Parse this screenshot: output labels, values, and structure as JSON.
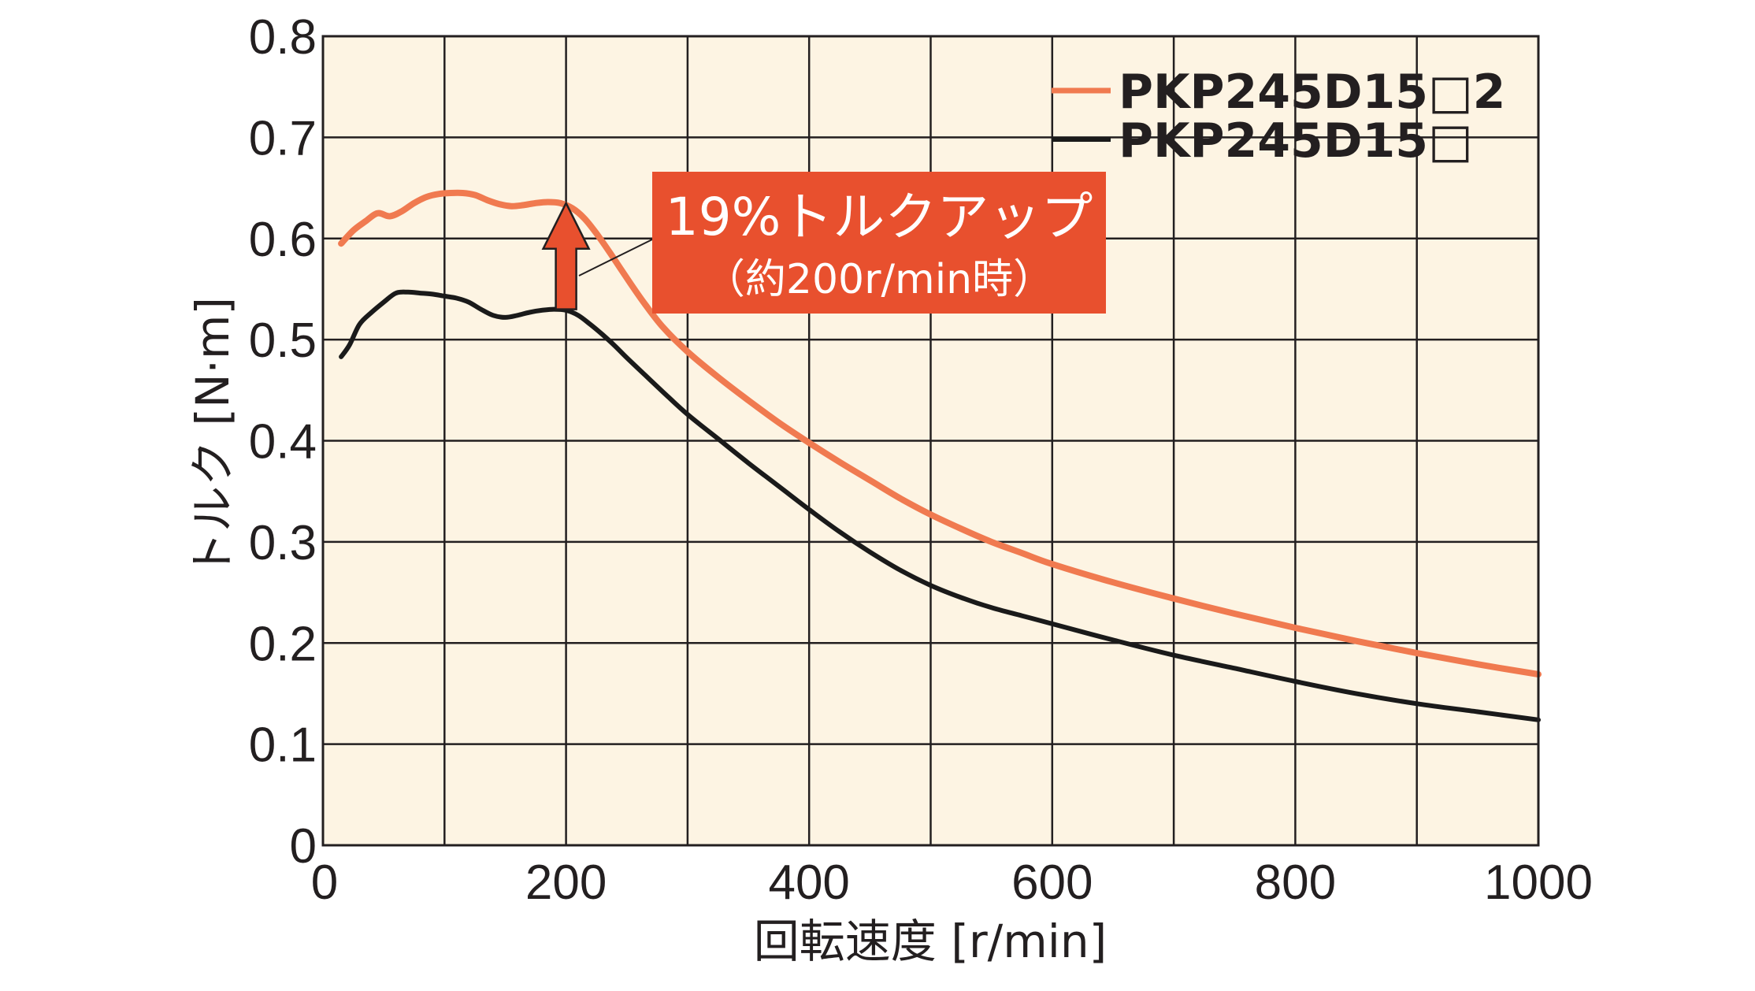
{
  "colors": {
    "plot_bg": "#fdf4e3",
    "grid": "#231f20",
    "series_orange": "#f07a50",
    "series_black": "#1a1a1a",
    "callout_bg": "#e8502e",
    "arrow": "#e8502e"
  },
  "annotation": {
    "main": "19%トルクアップ",
    "sub": "（約200r/min時）"
  },
  "chart_data": {
    "type": "line",
    "xlabel": "回転速度 [r/min]",
    "ylabel": "トルク [N·m]",
    "xlim": [
      0,
      1000
    ],
    "ylim": [
      0,
      0.8
    ],
    "x_ticks": [
      "0",
      "200",
      "400",
      "600",
      "800",
      "1000"
    ],
    "y_ticks": [
      "0",
      "0.1",
      "0.2",
      "0.3",
      "0.4",
      "0.5",
      "0.6",
      "0.7",
      "0.8"
    ],
    "grid": true,
    "grid_x_step": 100,
    "grid_y_step": 0.1,
    "legend_position": "top-right",
    "series": [
      {
        "name": "PKP245D15□2",
        "color": "#f07a50",
        "x": [
          15,
          25,
          35,
          45,
          55,
          65,
          75,
          85,
          95,
          105,
          115,
          125,
          135,
          145,
          155,
          165,
          175,
          185,
          195,
          205,
          215,
          225,
          235,
          245,
          255,
          265,
          280,
          300,
          325,
          350,
          375,
          400,
          425,
          450,
          475,
          500,
          525,
          550,
          575,
          600,
          650,
          700,
          750,
          800,
          850,
          900,
          950,
          1000
        ],
        "values": [
          0.595,
          0.608,
          0.617,
          0.625,
          0.622,
          0.627,
          0.635,
          0.641,
          0.644,
          0.645,
          0.645,
          0.643,
          0.638,
          0.634,
          0.632,
          0.633,
          0.635,
          0.636,
          0.635,
          0.63,
          0.62,
          0.605,
          0.588,
          0.57,
          0.552,
          0.535,
          0.512,
          0.488,
          0.463,
          0.44,
          0.418,
          0.398,
          0.379,
          0.361,
          0.343,
          0.327,
          0.313,
          0.3,
          0.289,
          0.278,
          0.26,
          0.244,
          0.229,
          0.215,
          0.202,
          0.19,
          0.179,
          0.169
        ]
      },
      {
        "name": "PKP245D15□",
        "color": "#1a1a1a",
        "x": [
          15,
          22,
          30,
          40,
          50,
          60,
          70,
          80,
          90,
          100,
          110,
          120,
          130,
          140,
          150,
          160,
          170,
          180,
          190,
          200,
          210,
          220,
          230,
          240,
          250,
          265,
          280,
          300,
          325,
          350,
          375,
          400,
          425,
          450,
          475,
          500,
          525,
          550,
          575,
          600,
          650,
          700,
          750,
          800,
          850,
          900,
          950,
          1000
        ],
        "values": [
          0.483,
          0.495,
          0.515,
          0.527,
          0.537,
          0.546,
          0.547,
          0.546,
          0.545,
          0.543,
          0.541,
          0.537,
          0.53,
          0.524,
          0.522,
          0.524,
          0.527,
          0.529,
          0.53,
          0.529,
          0.524,
          0.515,
          0.505,
          0.494,
          0.482,
          0.465,
          0.448,
          0.426,
          0.402,
          0.378,
          0.355,
          0.332,
          0.31,
          0.29,
          0.272,
          0.257,
          0.245,
          0.235,
          0.227,
          0.219,
          0.203,
          0.188,
          0.175,
          0.162,
          0.15,
          0.14,
          0.132,
          0.124
        ]
      }
    ],
    "arrow": {
      "x": 200,
      "from": 0.53,
      "to": 0.635
    }
  }
}
